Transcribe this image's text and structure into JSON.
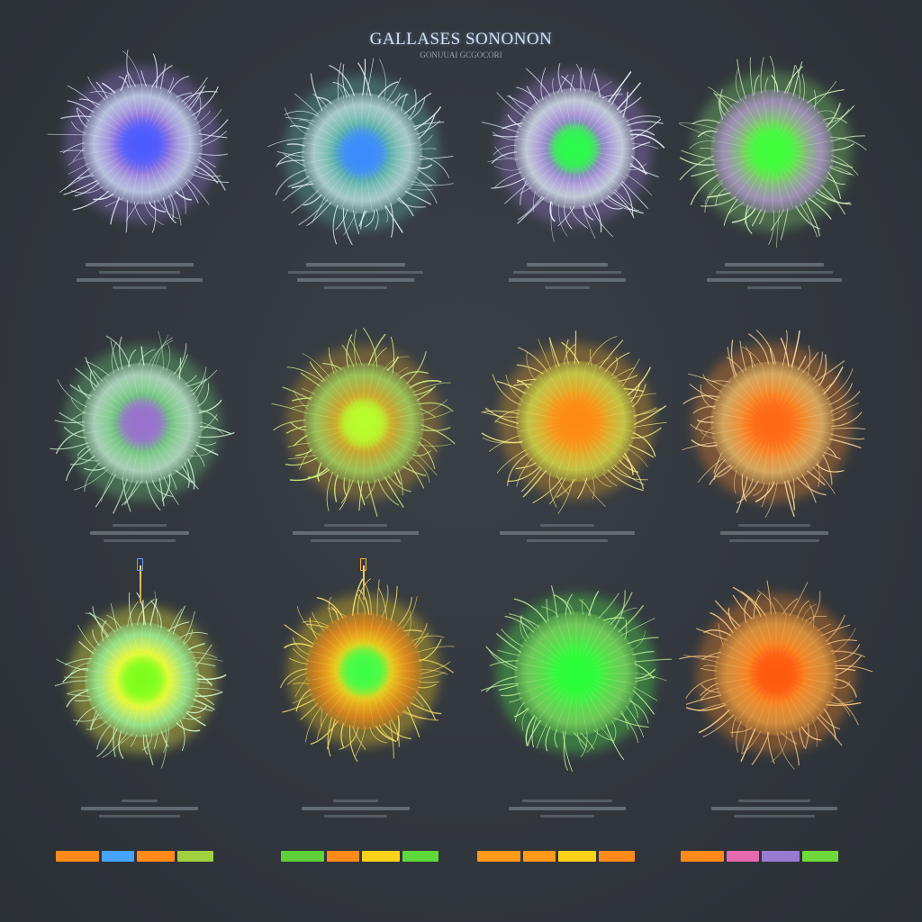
{
  "header": {
    "title": "GALLASES SONONON",
    "subtitle": "GONUUAI  GCGOCORI"
  },
  "organisms": [
    {
      "id": "r1c1",
      "core": "#4d5cff",
      "mid": "#9b7be0",
      "rim": "#d6e6ff",
      "filament": "#e8f1ff"
    },
    {
      "id": "r1c2",
      "core": "#3d8bff",
      "mid": "#5fb9a8",
      "rim": "#c9e9ea",
      "filament": "#e6f4f6"
    },
    {
      "id": "r1c3",
      "core": "#2bff4a",
      "mid": "#a07cd9",
      "rim": "#e2f0f8",
      "filament": "#eaf5ff"
    },
    {
      "id": "r1c4",
      "core": "#3fff3a",
      "mid": "#7fd36a",
      "rim": "#b99ad8",
      "filament": "#d8f7c8"
    },
    {
      "id": "r2c1",
      "core": "#9a6fd0",
      "mid": "#6fd07a",
      "rim": "#c9eed8",
      "filament": "#cff5d6"
    },
    {
      "id": "r2c2",
      "core": "#b8ff2e",
      "mid": "#d6a02a",
      "rim": "#a8e060",
      "filament": "#d9f58a"
    },
    {
      "id": "r2c3",
      "core": "#ff8a12",
      "mid": "#f3a522",
      "rim": "#d9e24a",
      "filament": "#f5ec8a"
    },
    {
      "id": "r2c4",
      "core": "#ff6a12",
      "mid": "#ff8a28",
      "rim": "#f0c06a",
      "filament": "#ffe0a8"
    },
    {
      "id": "r3c1",
      "core": "#7dff1a",
      "mid": "#ffff3a",
      "rim": "#9effa0",
      "filament": "#d8ffd0"
    },
    {
      "id": "r3c2",
      "core": "#3dff4a",
      "mid": "#ffd21a",
      "rim": "#f08a18",
      "filament": "#f5e06a"
    },
    {
      "id": "r3c3",
      "core": "#2cff3a",
      "mid": "#4ef048",
      "rim": "#7fe060",
      "filament": "#c8f7a0"
    },
    {
      "id": "r3c4",
      "core": "#ff5a10",
      "mid": "#ff8a24",
      "rim": "#f0a040",
      "filament": "#ffd08a"
    }
  ],
  "legend_bars": [
    [
      "#ff8a1a",
      "#46a4ff",
      "#ff8a1a",
      "#a0d040"
    ],
    [
      "#5fcf3a",
      "#ff8a1a",
      "#ffd21a",
      "#5fd83a"
    ],
    [
      "#ff9a1a",
      "#ff9a1a",
      "#ffd21a",
      "#ff8a1a"
    ],
    [
      "#ff8a1a",
      "#e66ab0",
      "#9a7ad0",
      "#6fd83a"
    ]
  ]
}
